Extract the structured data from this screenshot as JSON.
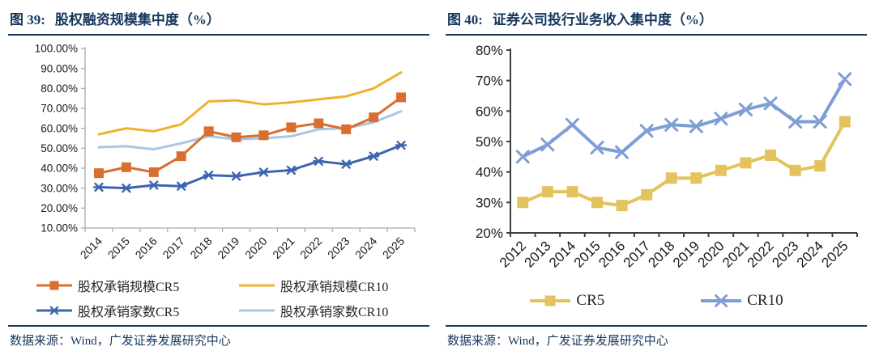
{
  "colors": {
    "navy": "#17375E",
    "left_axis": "#ABABAB",
    "right_axis": "#404040",
    "tick_text": "#1a1a1a"
  },
  "panels": [
    {
      "figure_no": "图  39:",
      "title": "股权融资规模集中度（%）",
      "source": "数据来源：Wind，广发证券发展研究中心"
    },
    {
      "figure_no": "图  40:",
      "title": "证券公司投行业务收入集中度（%）",
      "source": "数据来源：Wind，广发证券发展研究中心"
    }
  ],
  "chart_data": [
    {
      "type": "line",
      "title": "股权融资规模集中度（%）",
      "categories": [
        "2014",
        "2015",
        "2016",
        "2017",
        "2018",
        "2019",
        "2020",
        "2021",
        "2022",
        "2023",
        "2024",
        "2025"
      ],
      "ylim": [
        10,
        100
      ],
      "ytick_step": 10,
      "ytick_decimals": 2,
      "grid": false,
      "legend_position": "bottom-two-columns",
      "draw_order": [
        1,
        3,
        0,
        2
      ],
      "series": [
        {
          "name": "股权承销规模CR5",
          "color": "#D96E2E",
          "marker": "square",
          "line_width": 3,
          "values": [
            37.5,
            40.5,
            38,
            46,
            58.5,
            55.5,
            56.5,
            60.5,
            62.5,
            59.5,
            65.5,
            75.5
          ]
        },
        {
          "name": "股权承销规模CR10",
          "color": "#EEB22C",
          "marker": "none",
          "line_width": 3,
          "values": [
            57,
            60,
            58.5,
            62,
            73.5,
            74,
            72,
            73,
            74.5,
            76,
            80,
            88
          ]
        },
        {
          "name": "股权承销家数CR5",
          "color": "#3D65AE",
          "marker": "asterisk",
          "line_width": 3,
          "values": [
            30.5,
            30,
            31.5,
            31,
            36.5,
            36,
            38,
            39,
            43.5,
            42,
            46,
            51.5
          ]
        },
        {
          "name": "股权承销家数CR10",
          "color": "#A8C6E8",
          "marker": "none",
          "line_width": 3,
          "values": [
            50.5,
            51,
            49.5,
            52.5,
            56,
            54.5,
            55,
            56,
            59.5,
            60,
            63,
            68.5
          ]
        }
      ]
    },
    {
      "type": "line",
      "title": "证券公司投行业务收入集中度（%）",
      "categories": [
        "2012",
        "2013",
        "2014",
        "2015",
        "2016",
        "2017",
        "2018",
        "2019",
        "2020",
        "2021",
        "2022",
        "2023",
        "2024",
        "2025"
      ],
      "ylim": [
        20,
        80
      ],
      "ytick_step": 10,
      "ytick_decimals": 0,
      "grid": false,
      "legend_position": "bottom-centered-row",
      "draw_order": [
        0,
        1
      ],
      "series": [
        {
          "name": "CR5",
          "color": "#E4C25E",
          "marker": "square",
          "line_width": 4,
          "values": [
            30,
            33.5,
            33.5,
            30,
            29,
            32.5,
            38,
            38,
            40.5,
            43,
            45.5,
            40.5,
            42,
            56.5
          ]
        },
        {
          "name": "CR10",
          "color": "#7F9ED6",
          "marker": "x",
          "line_width": 4,
          "values": [
            45,
            49,
            55.5,
            48,
            46.5,
            53.5,
            55.5,
            55,
            57.5,
            60.5,
            62.5,
            56.5,
            56.5,
            70.5
          ]
        }
      ]
    }
  ]
}
